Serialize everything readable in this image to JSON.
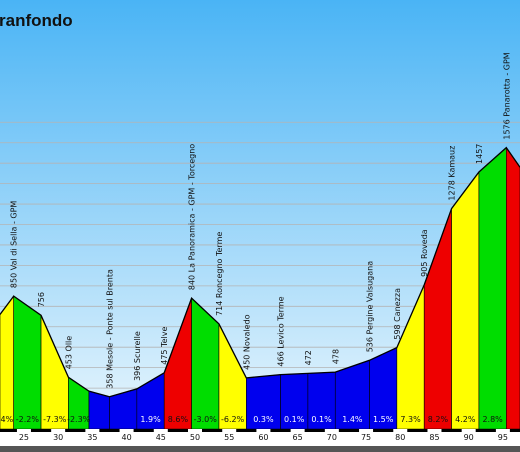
{
  "chart_data": {
    "type": "area",
    "title": "ranfondo",
    "xlabel": "",
    "ylabel": "",
    "xlim": [
      21.5,
      97.5
    ],
    "ylim": [
      200,
      1760
    ],
    "x_ticks": [
      25,
      30,
      35,
      40,
      45,
      50,
      55,
      60,
      65,
      70,
      75,
      80,
      85,
      90,
      95
    ],
    "grid": true,
    "profile": [
      {
        "x": 21.5,
        "y": 760
      },
      {
        "x": 23.5,
        "y": 850
      },
      {
        "x": 27.5,
        "y": 756
      },
      {
        "x": 31.5,
        "y": 453
      },
      {
        "x": 34.5,
        "y": 385
      },
      {
        "x": 37.5,
        "y": 358
      },
      {
        "x": 41.5,
        "y": 396
      },
      {
        "x": 45.5,
        "y": 475
      },
      {
        "x": 49.5,
        "y": 840
      },
      {
        "x": 53.5,
        "y": 714
      },
      {
        "x": 57.5,
        "y": 450
      },
      {
        "x": 62.5,
        "y": 466
      },
      {
        "x": 66.5,
        "y": 472
      },
      {
        "x": 70.5,
        "y": 478
      },
      {
        "x": 75.5,
        "y": 536
      },
      {
        "x": 79.5,
        "y": 598
      },
      {
        "x": 83.5,
        "y": 905
      },
      {
        "x": 87.5,
        "y": 1278
      },
      {
        "x": 91.5,
        "y": 1457
      },
      {
        "x": 95.5,
        "y": 1576
      },
      {
        "x": 97.5,
        "y": 1480
      }
    ],
    "segments": [
      {
        "from": 21.5,
        "to": 23.5,
        "grade": "4%",
        "color": "#ffff00"
      },
      {
        "from": 23.5,
        "to": 27.5,
        "grade": "-2.2%",
        "color": "#00dd00"
      },
      {
        "from": 27.5,
        "to": 31.5,
        "grade": "-7.3%",
        "color": "#ffff00"
      },
      {
        "from": 31.5,
        "to": 34.5,
        "grade": "-2.3%",
        "color": "#00dd00"
      },
      {
        "from": 34.5,
        "to": 37.5,
        "grade": "",
        "color": "#0000ee"
      },
      {
        "from": 37.5,
        "to": 41.5,
        "grade": "",
        "color": "#0000ee"
      },
      {
        "from": 41.5,
        "to": 45.5,
        "grade": "1.9%",
        "color": "#0000ee"
      },
      {
        "from": 45.5,
        "to": 49.5,
        "grade": "8.6%",
        "color": "#ee0000"
      },
      {
        "from": 49.5,
        "to": 53.5,
        "grade": "-3.0%",
        "color": "#00dd00"
      },
      {
        "from": 53.5,
        "to": 57.5,
        "grade": "-6.2%",
        "color": "#ffff00"
      },
      {
        "from": 57.5,
        "to": 62.5,
        "grade": "0.3%",
        "color": "#0000ee"
      },
      {
        "from": 62.5,
        "to": 66.5,
        "grade": "0.1%",
        "color": "#0000ee"
      },
      {
        "from": 66.5,
        "to": 70.5,
        "grade": "0.1%",
        "color": "#0000ee"
      },
      {
        "from": 70.5,
        "to": 75.5,
        "grade": "1.4%",
        "color": "#0000ee"
      },
      {
        "from": 75.5,
        "to": 79.5,
        "grade": "1.5%",
        "color": "#0000ee"
      },
      {
        "from": 79.5,
        "to": 83.5,
        "grade": "7.3%",
        "color": "#ffff00"
      },
      {
        "from": 83.5,
        "to": 87.5,
        "grade": "8.2%",
        "color": "#ee0000"
      },
      {
        "from": 87.5,
        "to": 91.5,
        "grade": "4.2%",
        "color": "#ffff00"
      },
      {
        "from": 91.5,
        "to": 95.5,
        "grade": "2.8%",
        "color": "#00dd00"
      },
      {
        "from": 95.5,
        "to": 97.5,
        "grade": "",
        "color": "#ee0000"
      }
    ],
    "annotations": [
      {
        "x": 23.5,
        "y": 850,
        "text": "850 Val di Sella - GPM"
      },
      {
        "x": 27.5,
        "y": 756,
        "text": "756"
      },
      {
        "x": 31.5,
        "y": 453,
        "text": "453 Olle"
      },
      {
        "x": 37.5,
        "y": 358,
        "text": "358 Mesole - Ponte sul Brenta"
      },
      {
        "x": 41.5,
        "y": 396,
        "text": "396 Scurelle"
      },
      {
        "x": 45.5,
        "y": 475,
        "text": "475 Telve"
      },
      {
        "x": 49.5,
        "y": 840,
        "text": "840 La Panoramica - GPM - Torcegno"
      },
      {
        "x": 53.5,
        "y": 714,
        "text": "714 Roncegno Terme"
      },
      {
        "x": 57.5,
        "y": 450,
        "text": "450 Novaledo"
      },
      {
        "x": 62.5,
        "y": 466,
        "text": "466 Levico Terme"
      },
      {
        "x": 66.5,
        "y": 472,
        "text": "472"
      },
      {
        "x": 70.5,
        "y": 478,
        "text": "478"
      },
      {
        "x": 75.5,
        "y": 536,
        "text": "536 Pergine Valsugana"
      },
      {
        "x": 79.5,
        "y": 598,
        "text": "598 Canezza"
      },
      {
        "x": 83.5,
        "y": 905,
        "text": "905 Roveda"
      },
      {
        "x": 87.5,
        "y": 1278,
        "text": "1278 Kamauz"
      },
      {
        "x": 91.5,
        "y": 1457,
        "text": "1457"
      },
      {
        "x": 95.5,
        "y": 1576,
        "text": "1576 Panarotta - GPM"
      }
    ],
    "colors": {
      "sky_top": "#4ab4f5",
      "sky_bottom": "#e9f6fd",
      "grid": "#b4b4b4",
      "outline": "#000000",
      "ground": "#555555"
    }
  }
}
